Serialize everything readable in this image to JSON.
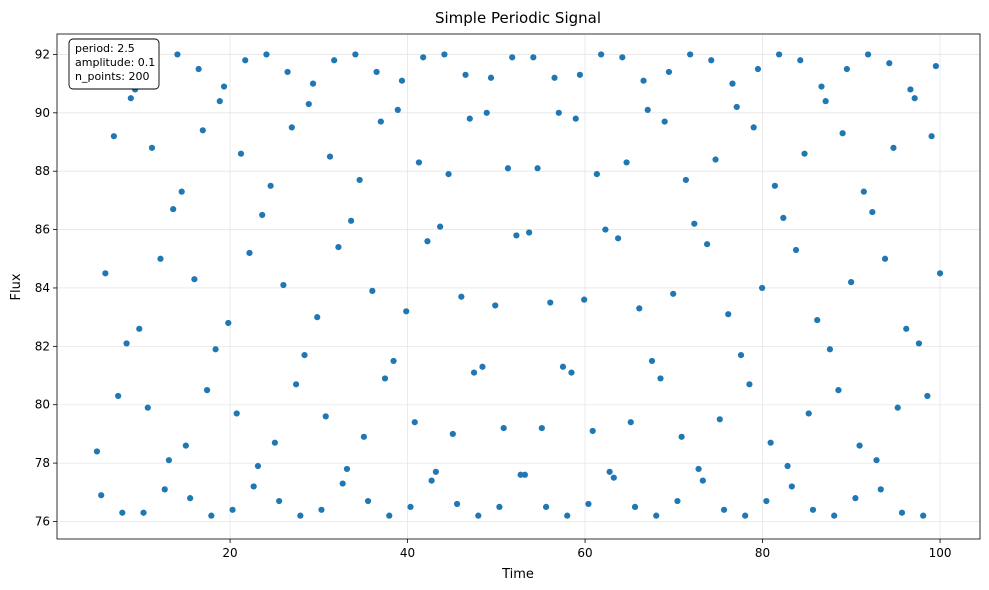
{
  "chart_data": {
    "type": "scatter",
    "title": "Simple Periodic Signal",
    "xlabel": "Time",
    "ylabel": "Flux",
    "xlim": [
      0.5,
      104.5
    ],
    "ylim": [
      75.4,
      92.7
    ],
    "xticks": [
      20,
      40,
      60,
      80,
      100
    ],
    "yticks": [
      76,
      78,
      80,
      82,
      84,
      86,
      88,
      90,
      92
    ],
    "grid": true,
    "marker_color": "#1f77b4",
    "info_box": {
      "placement": "top-left",
      "lines": [
        "period: 2.5",
        "amplitude: 0.1",
        "n_points: 200"
      ]
    },
    "x": [
      5.0,
      5.48,
      5.95,
      6.43,
      6.91,
      7.39,
      7.86,
      8.34,
      8.82,
      9.3,
      9.77,
      10.25,
      10.73,
      11.2,
      11.68,
      12.16,
      12.64,
      13.11,
      13.59,
      14.07,
      14.55,
      15.02,
      15.5,
      15.98,
      16.46,
      16.93,
      17.41,
      17.89,
      18.37,
      18.84,
      19.32,
      19.8,
      20.28,
      20.75,
      21.23,
      21.71,
      22.19,
      22.66,
      23.14,
      23.62,
      24.1,
      24.57,
      25.05,
      25.53,
      26.01,
      26.48,
      26.96,
      27.44,
      27.92,
      28.39,
      28.87,
      29.35,
      29.82,
      30.3,
      30.78,
      31.26,
      31.73,
      32.21,
      32.69,
      33.17,
      33.64,
      34.12,
      34.6,
      35.08,
      35.55,
      36.03,
      36.51,
      36.99,
      37.46,
      37.94,
      38.42,
      38.9,
      39.37,
      39.85,
      40.33,
      40.81,
      41.28,
      41.76,
      42.24,
      42.71,
      43.19,
      43.67,
      44.15,
      44.62,
      45.1,
      45.58,
      46.06,
      46.53,
      47.01,
      47.49,
      47.97,
      48.44,
      48.92,
      49.4,
      49.88,
      50.35,
      50.83,
      51.31,
      51.79,
      52.26,
      52.74,
      53.22,
      53.7,
      54.17,
      54.65,
      55.13,
      55.61,
      56.08,
      56.56,
      57.04,
      57.51,
      57.99,
      58.47,
      58.95,
      59.42,
      59.9,
      60.38,
      60.86,
      61.33,
      61.81,
      62.29,
      62.77,
      63.24,
      63.72,
      64.2,
      64.68,
      65.15,
      65.63,
      66.11,
      66.59,
      67.06,
      67.54,
      68.02,
      68.5,
      68.97,
      69.45,
      69.93,
      70.41,
      70.88,
      71.36,
      71.84,
      72.31,
      72.79,
      73.27,
      73.75,
      74.22,
      74.7,
      75.18,
      75.66,
      76.13,
      76.61,
      77.09,
      77.57,
      78.04,
      78.52,
      79.0,
      79.48,
      79.95,
      80.43,
      80.91,
      81.39,
      81.86,
      82.34,
      82.82,
      83.3,
      83.77,
      84.25,
      84.73,
      85.2,
      85.68,
      86.16,
      86.64,
      87.11,
      87.59,
      88.07,
      88.55,
      89.02,
      89.5,
      89.98,
      90.46,
      90.93,
      91.41,
      91.89,
      92.37,
      92.84,
      93.32,
      93.8,
      94.28,
      94.75,
      95.23,
      95.71,
      96.19,
      96.66,
      97.14,
      97.62,
      98.1,
      98.57,
      99.05,
      99.53,
      100.0
    ],
    "y": [
      78.4,
      76.9,
      84.5,
      92.4,
      89.2,
      80.3,
      76.3,
      82.1,
      90.5,
      90.8,
      82.6,
      76.3,
      79.9,
      88.8,
      92.2,
      85.0,
      77.1,
      78.1,
      86.7,
      92.0,
      87.3,
      78.6,
      76.8,
      84.3,
      91.5,
      89.4,
      80.5,
      76.2,
      81.9,
      90.4,
      90.9,
      82.8,
      76.4,
      79.7,
      88.6,
      91.8,
      85.2,
      77.2,
      77.9,
      86.5,
      92.0,
      87.5,
      78.7,
      76.7,
      84.1,
      91.4,
      89.5,
      80.7,
      76.2,
      81.7,
      90.3,
      91.0,
      83.0,
      76.4,
      79.6,
      88.5,
      91.8,
      85.4,
      77.3,
      77.8,
      86.3,
      92.0,
      87.7,
      78.9,
      76.7,
      83.9,
      91.4,
      89.7,
      80.9,
      76.2,
      81.5,
      90.1,
      91.1,
      83.2,
      76.5,
      79.4,
      88.3,
      91.9,
      85.6,
      77.4,
      77.7,
      86.1,
      92.0,
      87.9,
      79.0,
      76.6,
      83.7,
      91.3,
      89.8,
      81.1,
      76.2,
      81.3,
      90.0,
      91.2,
      83.4,
      76.5,
      79.2,
      88.1,
      91.9,
      85.8,
      77.6,
      77.6,
      85.9,
      91.9,
      88.1,
      79.2,
      76.5,
      83.5,
      91.2,
      90.0,
      81.3,
      76.2,
      81.1,
      89.8,
      91.3,
      83.6,
      76.6,
      79.1,
      87.9,
      92.0,
      86.0,
      77.7,
      77.5,
      85.7,
      91.9,
      88.3,
      79.4,
      76.5,
      83.3,
      91.1,
      90.1,
      81.5,
      76.2,
      80.9,
      89.7,
      91.4,
      83.8,
      76.7,
      78.9,
      87.7,
      92.0,
      86.2,
      77.8,
      77.4,
      85.5,
      91.8,
      88.4,
      79.5,
      76.4,
      83.1,
      91.0,
      90.2,
      81.7,
      76.2,
      80.7,
      89.5,
      91.5,
      84.0,
      76.7,
      78.7,
      87.5,
      92.0,
      86.4,
      77.9,
      77.2,
      85.3,
      91.8,
      88.6,
      79.7,
      76.4,
      82.9,
      90.9,
      90.4,
      81.9,
      76.2,
      80.5,
      89.3,
      91.5,
      84.2,
      76.8,
      78.6,
      87.3,
      92.0,
      86.6,
      78.1,
      77.1,
      85.0,
      91.7,
      88.8,
      79.9,
      76.3,
      82.6,
      90.8,
      90.5,
      82.1,
      76.2,
      80.3,
      89.2,
      91.6,
      84.5
    ]
  }
}
